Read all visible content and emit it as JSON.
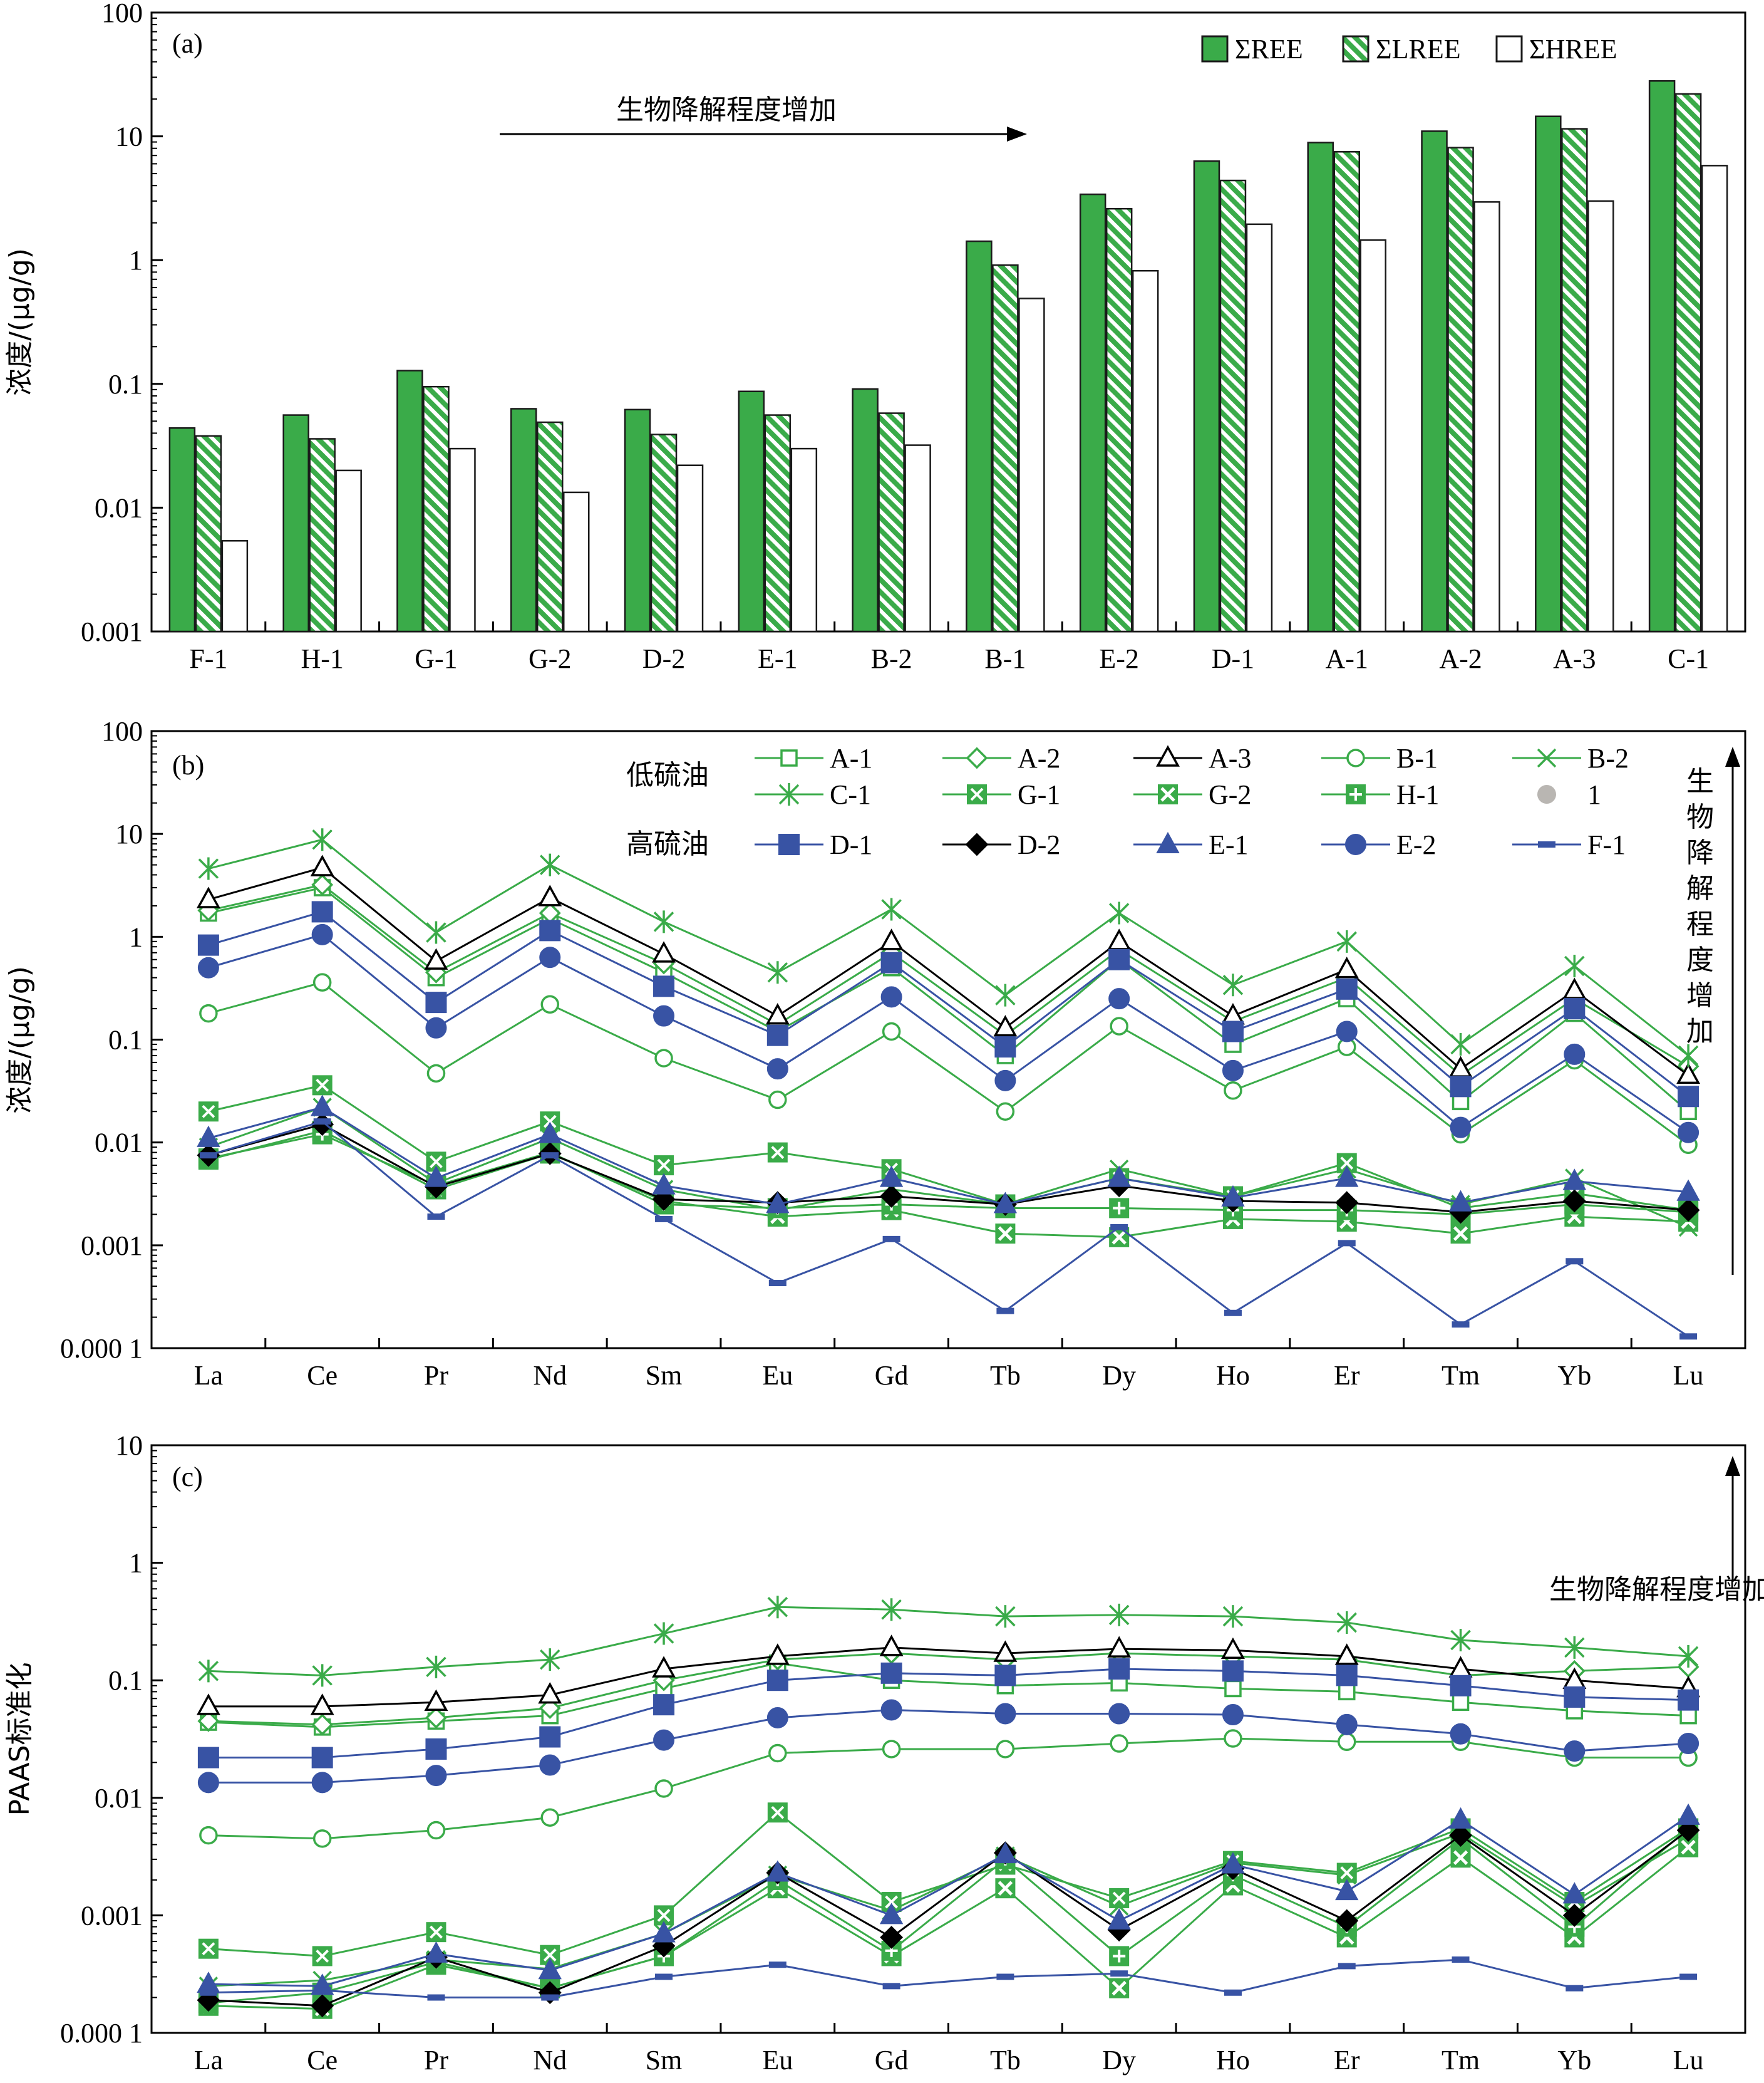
{
  "colors": {
    "green": "#3aab49",
    "green_dark": "#1a1a1a",
    "blue": "#3853a4",
    "black": "#000000"
  },
  "chart_data": [
    {
      "id": "a",
      "type": "bar",
      "panel_label": "(a)",
      "ylabel": "浓度/(μg/g)",
      "yscale": "log",
      "ylim": [
        0.001,
        100
      ],
      "yticks": [
        "0.001",
        "0.01",
        "0.1",
        "1",
        "10",
        "100"
      ],
      "annotation": "生物降解程度增加",
      "categories": [
        "F-1",
        "H-1",
        "G-1",
        "G-2",
        "D-2",
        "E-1",
        "B-2",
        "B-1",
        "E-2",
        "D-1",
        "A-1",
        "A-2",
        "A-3",
        "C-1"
      ],
      "series": [
        {
          "name": "ΣREE",
          "style": "solid",
          "values": [
            0.044,
            0.056,
            0.128,
            0.063,
            0.062,
            0.087,
            0.091,
            1.42,
            3.4,
            6.3,
            8.9,
            11.0,
            14.5,
            28.0
          ]
        },
        {
          "name": "ΣLREE",
          "style": "hatch",
          "values": [
            0.038,
            0.036,
            0.095,
            0.049,
            0.039,
            0.056,
            0.058,
            0.91,
            2.6,
            4.4,
            7.5,
            8.1,
            11.5,
            22.0
          ]
        },
        {
          "name": "ΣHREE",
          "style": "hollow",
          "values": [
            0.0054,
            0.02,
            0.03,
            0.0133,
            0.022,
            0.03,
            0.032,
            0.49,
            0.82,
            1.95,
            1.45,
            2.95,
            3.0,
            5.8
          ]
        }
      ],
      "legend_position": "top-right"
    },
    {
      "id": "b",
      "type": "line",
      "panel_label": "(b)",
      "ylabel": "浓度/(μg/g)",
      "yscale": "log",
      "ylim": [
        0.0001,
        100
      ],
      "yticks": [
        "0.000 1",
        "0.001",
        "0.01",
        "0.1",
        "1",
        "10",
        "100"
      ],
      "annotation": "生物降解程度增加",
      "group_labels": [
        "低硫油",
        "高硫油"
      ],
      "categories": [
        "La",
        "Ce",
        "Pr",
        "Nd",
        "Sm",
        "Eu",
        "Gd",
        "Tb",
        "Dy",
        "Ho",
        "Er",
        "Tm",
        "Yb",
        "Lu"
      ],
      "legend_extra": {
        "name": "1",
        "color": "#b9b6b2"
      },
      "series": [
        {
          "name": "A-1",
          "group": "low",
          "marker": "square-open",
          "color": "green",
          "values": [
            1.7,
            3.0,
            0.4,
            1.5,
            0.45,
            0.12,
            0.5,
            0.07,
            0.6,
            0.09,
            0.25,
            0.025,
            0.18,
            0.02
          ]
        },
        {
          "name": "A-2",
          "group": "low",
          "marker": "diamond-open",
          "color": "green",
          "values": [
            1.8,
            3.2,
            0.45,
            1.7,
            0.55,
            0.14,
            0.7,
            0.11,
            0.75,
            0.15,
            0.4,
            0.045,
            0.25,
            0.055
          ]
        },
        {
          "name": "A-3",
          "group": "low",
          "marker": "triangle-open",
          "color": "black",
          "values": [
            2.3,
            4.7,
            0.58,
            2.4,
            0.68,
            0.17,
            0.9,
            0.13,
            0.9,
            0.17,
            0.48,
            0.052,
            0.3,
            0.045
          ]
        },
        {
          "name": "B-1",
          "group": "low",
          "marker": "circle-open",
          "color": "green",
          "values": [
            0.18,
            0.36,
            0.047,
            0.22,
            0.066,
            0.026,
            0.12,
            0.02,
            0.135,
            0.032,
            0.085,
            0.012,
            0.063,
            0.0095
          ]
        },
        {
          "name": "B-2",
          "group": "low",
          "marker": "x",
          "color": "green",
          "values": [
            0.009,
            0.022,
            0.004,
            0.011,
            0.0035,
            0.0022,
            0.0035,
            0.0025,
            0.0055,
            0.003,
            0.0055,
            0.0025,
            0.0045,
            0.0015
          ]
        },
        {
          "name": "C-1",
          "group": "low",
          "marker": "asterisk",
          "color": "green",
          "values": [
            4.6,
            8.8,
            1.1,
            5.0,
            1.4,
            0.45,
            1.85,
            0.27,
            1.7,
            0.34,
            0.9,
            0.09,
            0.52,
            0.07
          ]
        },
        {
          "name": "G-1",
          "group": "low",
          "marker": "square-x",
          "color": "green",
          "values": [
            0.02,
            0.036,
            0.0065,
            0.016,
            0.006,
            0.008,
            0.0055,
            0.0025,
            0.0045,
            0.003,
            0.0063,
            0.0023,
            0.0032,
            0.0022
          ]
        },
        {
          "name": "G-2",
          "group": "low",
          "marker": "square-x2",
          "color": "green",
          "values": [
            0.0068,
            0.013,
            0.0035,
            0.0078,
            0.0027,
            0.0019,
            0.0022,
            0.0013,
            0.0012,
            0.0018,
            0.0017,
            0.0013,
            0.0019,
            0.0017
          ]
        },
        {
          "name": "H-1",
          "group": "low",
          "marker": "square-plus",
          "color": "green",
          "values": [
            0.007,
            0.012,
            0.0038,
            0.008,
            0.0025,
            0.0023,
            0.0025,
            0.0023,
            0.0023,
            0.0022,
            0.0022,
            0.002,
            0.0025,
            0.0021
          ]
        },
        {
          "name": "D-1",
          "group": "high",
          "marker": "square-filled",
          "color": "blue",
          "values": [
            0.83,
            1.75,
            0.23,
            1.15,
            0.33,
            0.11,
            0.56,
            0.085,
            0.6,
            0.12,
            0.31,
            0.035,
            0.2,
            0.028
          ]
        },
        {
          "name": "D-2",
          "group": "high",
          "marker": "diamond-filled",
          "color": "black",
          "values": [
            0.0075,
            0.015,
            0.0037,
            0.0078,
            0.0028,
            0.0026,
            0.003,
            0.0025,
            0.0038,
            0.0027,
            0.0026,
            0.0021,
            0.0027,
            0.0022
          ]
        },
        {
          "name": "E-1",
          "group": "high",
          "marker": "triangle-filled",
          "color": "blue",
          "values": [
            0.011,
            0.022,
            0.0045,
            0.012,
            0.0038,
            0.0025,
            0.0045,
            0.0025,
            0.0045,
            0.0029,
            0.0045,
            0.0026,
            0.0042,
            0.0033
          ]
        },
        {
          "name": "E-2",
          "group": "high",
          "marker": "circle-filled",
          "color": "blue",
          "values": [
            0.5,
            1.05,
            0.13,
            0.63,
            0.17,
            0.052,
            0.26,
            0.04,
            0.25,
            0.05,
            0.12,
            0.014,
            0.072,
            0.0125
          ]
        },
        {
          "name": "F-1",
          "group": "high",
          "marker": "dash",
          "color": "blue",
          "values": [
            0.0075,
            0.016,
            0.0019,
            0.0075,
            0.0018,
            0.00043,
            0.00115,
            0.00023,
            0.0015,
            0.00022,
            0.00105,
            0.00017,
            0.0007,
            0.00013
          ]
        }
      ],
      "legend_position": "top"
    },
    {
      "id": "c",
      "type": "line",
      "panel_label": "(c)",
      "ylabel": "PAAS标准化",
      "yscale": "log",
      "ylim": [
        0.0001,
        10
      ],
      "yticks": [
        "0.000 1",
        "0.001",
        "0.01",
        "0.1",
        "1",
        "10"
      ],
      "annotation": "生物降解程度增加",
      "categories": [
        "La",
        "Ce",
        "Pr",
        "Nd",
        "Sm",
        "Eu",
        "Gd",
        "Tb",
        "Dy",
        "Ho",
        "Er",
        "Tm",
        "Yb",
        "Lu"
      ],
      "series": [
        {
          "name": "A-1",
          "marker": "square-open",
          "color": "green",
          "values": [
            0.044,
            0.04,
            0.045,
            0.05,
            0.085,
            0.14,
            0.1,
            0.09,
            0.095,
            0.085,
            0.08,
            0.065,
            0.055,
            0.05
          ]
        },
        {
          "name": "A-2",
          "marker": "diamond-open",
          "color": "green",
          "values": [
            0.045,
            0.042,
            0.048,
            0.058,
            0.1,
            0.15,
            0.17,
            0.15,
            0.17,
            0.16,
            0.15,
            0.11,
            0.12,
            0.13
          ]
        },
        {
          "name": "A-3",
          "marker": "triangle-open",
          "color": "black",
          "values": [
            0.06,
            0.06,
            0.065,
            0.075,
            0.125,
            0.16,
            0.19,
            0.17,
            0.185,
            0.18,
            0.16,
            0.125,
            0.1,
            0.085
          ]
        },
        {
          "name": "B-1",
          "marker": "circle-open",
          "color": "green",
          "values": [
            0.0048,
            0.0045,
            0.0053,
            0.0068,
            0.012,
            0.024,
            0.026,
            0.026,
            0.029,
            0.032,
            0.03,
            0.03,
            0.022,
            0.022
          ]
        },
        {
          "name": "B-2",
          "marker": "x",
          "color": "green",
          "values": [
            0.00025,
            0.00028,
            0.00042,
            0.00035,
            0.0007,
            0.0022,
            0.0011,
            0.0032,
            0.0012,
            0.0028,
            0.0022,
            0.005,
            0.0012,
            0.0045
          ]
        },
        {
          "name": "C-1",
          "marker": "asterisk",
          "color": "green",
          "values": [
            0.12,
            0.11,
            0.13,
            0.15,
            0.25,
            0.42,
            0.4,
            0.35,
            0.36,
            0.35,
            0.31,
            0.22,
            0.19,
            0.16
          ]
        },
        {
          "name": "G-1",
          "marker": "square-x",
          "color": "green",
          "values": [
            0.00052,
            0.00045,
            0.00072,
            0.00046,
            0.001,
            0.0075,
            0.0013,
            0.0027,
            0.0014,
            0.0029,
            0.0023,
            0.0055,
            0.0013,
            0.0055
          ]
        },
        {
          "name": "G-2",
          "marker": "square-x2",
          "color": "green",
          "values": [
            0.00017,
            0.00016,
            0.00038,
            0.00024,
            0.00045,
            0.0017,
            0.00045,
            0.0017,
            0.00024,
            0.0018,
            0.00065,
            0.0031,
            0.00065,
            0.0038
          ]
        },
        {
          "name": "H-1",
          "marker": "square-plus",
          "color": "green",
          "values": [
            0.00018,
            0.00022,
            0.0004,
            0.00024,
            0.00045,
            0.002,
            0.0005,
            0.003,
            0.00045,
            0.0022,
            0.0008,
            0.0045,
            0.0008,
            0.0055
          ]
        },
        {
          "name": "D-1",
          "marker": "square-filled",
          "color": "blue",
          "values": [
            0.022,
            0.022,
            0.026,
            0.033,
            0.062,
            0.1,
            0.115,
            0.11,
            0.125,
            0.12,
            0.11,
            0.09,
            0.072,
            0.068
          ]
        },
        {
          "name": "D-2",
          "marker": "diamond-filled",
          "color": "black",
          "values": [
            0.00019,
            0.00017,
            0.00044,
            0.00022,
            0.00055,
            0.0023,
            0.00065,
            0.0034,
            0.00075,
            0.0025,
            0.0009,
            0.0048,
            0.001,
            0.0053
          ]
        },
        {
          "name": "E-1",
          "marker": "triangle-filled",
          "color": "blue",
          "values": [
            0.00026,
            0.00025,
            0.00047,
            0.00034,
            0.0007,
            0.0023,
            0.001,
            0.0033,
            0.0009,
            0.0027,
            0.0016,
            0.0065,
            0.0015,
            0.007
          ]
        },
        {
          "name": "E-2",
          "marker": "circle-filled",
          "color": "blue",
          "values": [
            0.0135,
            0.0135,
            0.0155,
            0.019,
            0.031,
            0.048,
            0.056,
            0.052,
            0.052,
            0.051,
            0.042,
            0.035,
            0.025,
            0.029
          ]
        },
        {
          "name": "F-1",
          "marker": "dash",
          "color": "blue",
          "values": [
            0.00022,
            0.00023,
            0.0002,
            0.0002,
            0.0003,
            0.00038,
            0.00025,
            0.0003,
            0.00032,
            0.00022,
            0.00037,
            0.00042,
            0.00024,
            0.0003
          ]
        }
      ]
    }
  ]
}
